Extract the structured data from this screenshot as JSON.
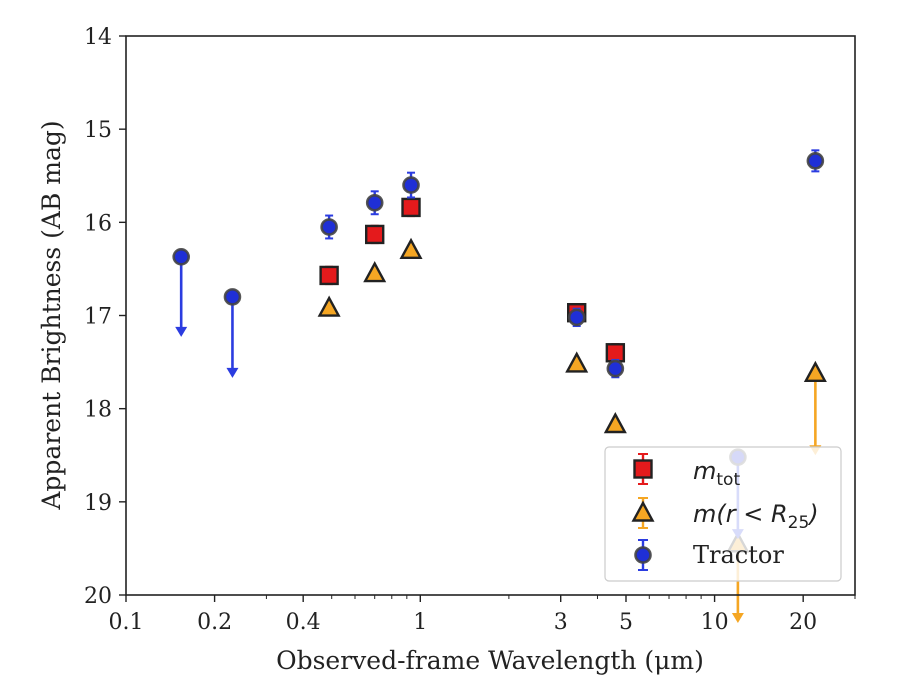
{
  "chart_data": {
    "type": "scatter",
    "title": "",
    "xlabel": "Observed-frame Wavelength (μm)",
    "ylabel": "Apparent Brightness (AB mag)",
    "x_scale": "log",
    "xlim": [
      0.1,
      30
    ],
    "ylim": [
      20,
      14
    ],
    "y_inverted": true,
    "x_ticks": [
      {
        "value": 0.1,
        "label": "0.1"
      },
      {
        "value": 0.2,
        "label": "0.2"
      },
      {
        "value": 0.4,
        "label": "0.4"
      },
      {
        "value": 1,
        "label": "1"
      },
      {
        "value": 3,
        "label": "3"
      },
      {
        "value": 5,
        "label": "5"
      },
      {
        "value": 10,
        "label": "10"
      },
      {
        "value": 20,
        "label": "20"
      }
    ],
    "y_ticks": [
      {
        "value": 14,
        "label": "14"
      },
      {
        "value": 15,
        "label": "15"
      },
      {
        "value": 16,
        "label": "16"
      },
      {
        "value": 17,
        "label": "17"
      },
      {
        "value": 18,
        "label": "18"
      },
      {
        "value": 19,
        "label": "19"
      },
      {
        "value": 20,
        "label": "20"
      }
    ],
    "grid": false,
    "legend_position": "lower-right",
    "series": [
      {
        "key": "mtot",
        "marker": "square",
        "face_color": "#e41a1c",
        "edge_color": "#222222",
        "error_color": "#e41a1c",
        "points": [
          {
            "x": 0.49,
            "y": 16.57,
            "err": 0.05
          },
          {
            "x": 0.7,
            "y": 16.13,
            "err": 0.05
          },
          {
            "x": 0.93,
            "y": 15.84,
            "err": 0.05
          },
          {
            "x": 3.4,
            "y": 16.97,
            "err": 0.05
          },
          {
            "x": 4.6,
            "y": 17.4,
            "err": 0.05
          }
        ]
      },
      {
        "key": "mr25",
        "marker": "triangle",
        "face_color": "#f5a623",
        "edge_color": "#222222",
        "error_color": "#f5a623",
        "points": [
          {
            "x": 0.49,
            "y": 16.92
          },
          {
            "x": 0.7,
            "y": 16.55
          },
          {
            "x": 0.93,
            "y": 16.3
          },
          {
            "x": 3.4,
            "y": 17.52
          },
          {
            "x": 4.6,
            "y": 18.17
          },
          {
            "x": 12,
            "y": 19.45,
            "upper_limit": true,
            "arrow_to": 20.3
          },
          {
            "x": 22,
            "y": 17.62,
            "upper_limit": true,
            "arrow_to": 18.5
          }
        ]
      },
      {
        "name": "Tractor",
        "key": "tractor",
        "marker": "circle",
        "face_color": "#1f2fd6",
        "edge_color": "#444444",
        "error_color": "#2b3ce0",
        "points": [
          {
            "x": 0.154,
            "y": 16.37,
            "upper_limit": true,
            "arrow_to": 17.23
          },
          {
            "x": 0.23,
            "y": 16.8,
            "upper_limit": true,
            "arrow_to": 17.67
          },
          {
            "x": 0.49,
            "y": 16.05,
            "err": 0.08
          },
          {
            "x": 0.7,
            "y": 15.79,
            "err": 0.08
          },
          {
            "x": 0.93,
            "y": 15.6,
            "err": 0.09
          },
          {
            "x": 3.4,
            "y": 17.02,
            "err": 0.05
          },
          {
            "x": 4.6,
            "y": 17.57,
            "err": 0.05
          },
          {
            "x": 12,
            "y": 18.52,
            "upper_limit": true,
            "arrow_to": 19.4
          },
          {
            "x": 22,
            "y": 15.34,
            "err": 0.07
          }
        ]
      }
    ]
  },
  "legend": {
    "mtot_symbol": "m",
    "mtot_sub": "tot",
    "mr25_prefix": "m(r < R",
    "mr25_sub": "25",
    "mr25_suffix": ")",
    "tractor": "Tractor"
  }
}
